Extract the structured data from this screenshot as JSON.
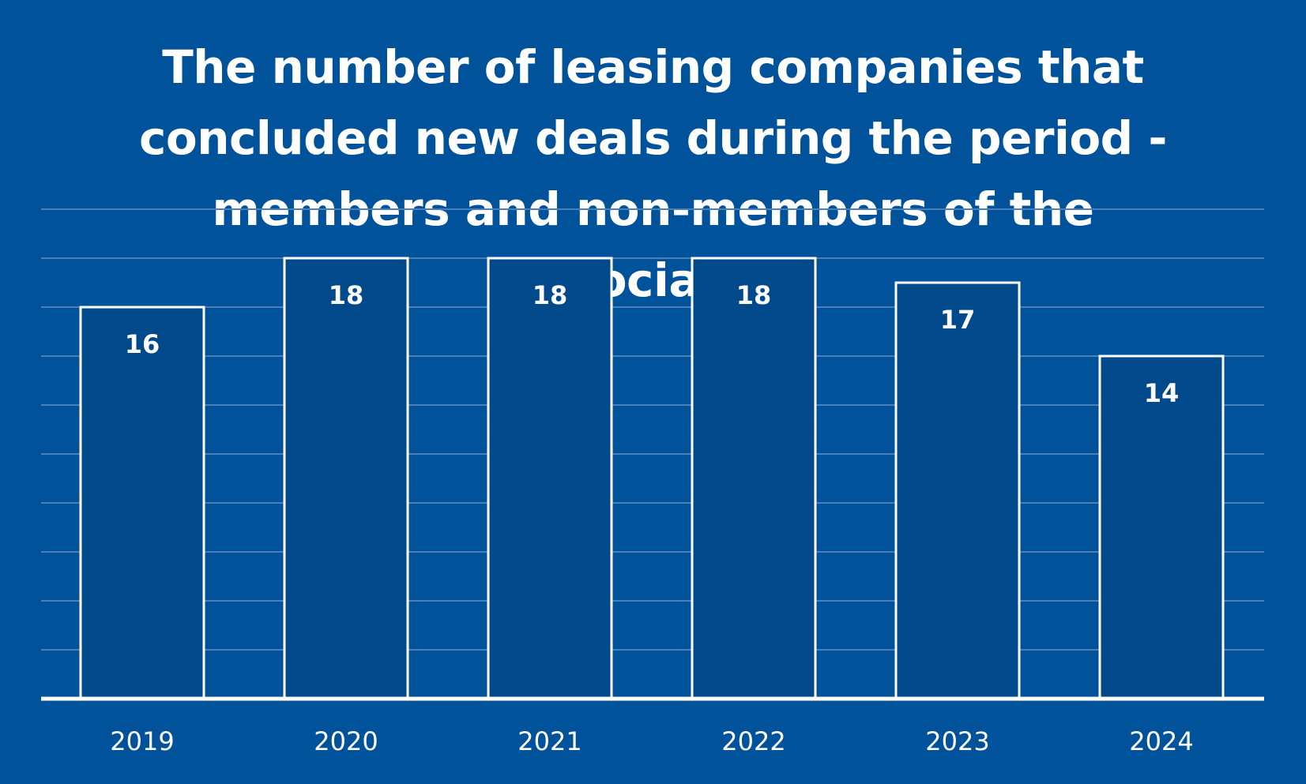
{
  "chart_data": {
    "type": "bar",
    "title": "The number of leasing companies that concluded new deals during the period - members and non-members of the Association",
    "categories": [
      "2019",
      "2020",
      "2021",
      "2022",
      "2023",
      "2024"
    ],
    "values": [
      16,
      18,
      18,
      18,
      17,
      14
    ],
    "xlabel": "",
    "ylabel": "",
    "ylim": [
      0,
      21
    ],
    "grid": true,
    "data_labels": true,
    "legend": "none"
  },
  "colors": {
    "background": "#00529b",
    "bar_fill": "#004a8c",
    "bar_stroke": "#ffffff",
    "gridline": "#4a7fb8",
    "text": "#ffffff"
  }
}
